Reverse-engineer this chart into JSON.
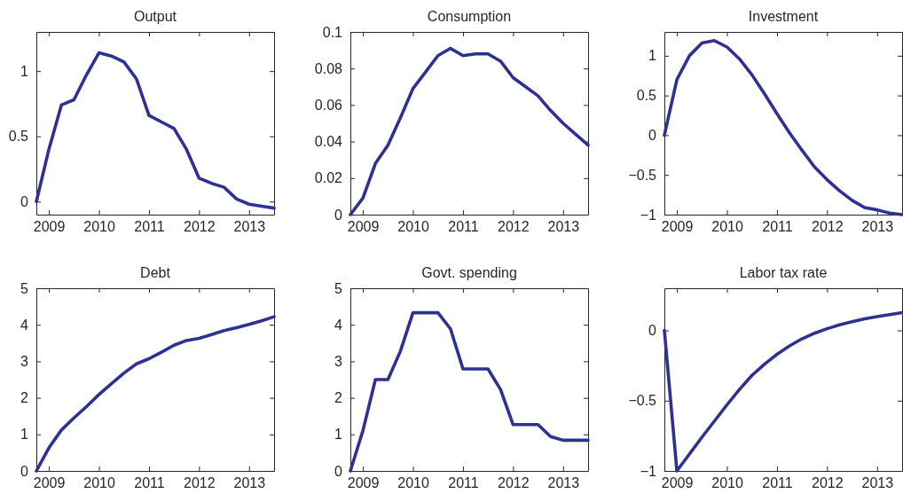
{
  "chart_data": [
    {
      "type": "line",
      "title": "Output",
      "x": [
        2008.75,
        2009,
        2009.25,
        2009.5,
        2009.75,
        2010,
        2010.25,
        2010.5,
        2010.75,
        2011,
        2011.25,
        2011.5,
        2011.75,
        2012,
        2012.25,
        2012.5,
        2012.75,
        2013,
        2013.25,
        2013.5
      ],
      "values": [
        0,
        0.4,
        0.74,
        0.78,
        0.97,
        1.14,
        1.115,
        1.07,
        0.94,
        0.66,
        0.61,
        0.56,
        0.4,
        0.18,
        0.14,
        0.11,
        0.02,
        -0.02,
        -0.035,
        -0.05
      ],
      "color": "#2e3192",
      "xlim": [
        2008.75,
        2013.5
      ],
      "ylim": [
        -0.1,
        1.3
      ],
      "xticks": [
        2009,
        2010,
        2011,
        2012,
        2013
      ],
      "yticks": [
        0,
        0.5,
        1
      ]
    },
    {
      "type": "line",
      "title": "Consumption",
      "x": [
        2008.75,
        2009,
        2009.25,
        2009.5,
        2009.75,
        2010,
        2010.25,
        2010.5,
        2010.75,
        2011,
        2011.25,
        2011.5,
        2011.75,
        2012,
        2012.25,
        2012.5,
        2012.75,
        2013,
        2013.25,
        2013.5
      ],
      "values": [
        0,
        0.009,
        0.028,
        0.038,
        0.053,
        0.069,
        0.078,
        0.087,
        0.091,
        0.087,
        0.088,
        0.088,
        0.084,
        0.075,
        0.07,
        0.065,
        0.057,
        0.05,
        0.044,
        0.038
      ],
      "color": "#2e3192",
      "xlim": [
        2008.75,
        2013.5
      ],
      "ylim": [
        0,
        0.1
      ],
      "xticks": [
        2009,
        2010,
        2011,
        2012,
        2013
      ],
      "yticks": [
        0,
        0.02,
        0.04,
        0.06,
        0.08,
        0.1
      ]
    },
    {
      "type": "line",
      "title": "Investment",
      "x": [
        2008.75,
        2009,
        2009.25,
        2009.5,
        2009.75,
        2010,
        2010.25,
        2010.5,
        2010.75,
        2011,
        2011.25,
        2011.5,
        2011.75,
        2012,
        2012.25,
        2012.5,
        2012.75,
        2013,
        2013.25,
        2013.5
      ],
      "values": [
        0,
        0.7,
        1,
        1.16,
        1.19,
        1.11,
        0.96,
        0.76,
        0.52,
        0.27,
        0.03,
        -0.19,
        -0.4,
        -0.56,
        -0.7,
        -0.82,
        -0.91,
        -0.94,
        -0.98,
        -1
      ],
      "color": "#2e3192",
      "xlim": [
        2008.75,
        2013.5
      ],
      "ylim": [
        -1,
        1.3
      ],
      "xticks": [
        2009,
        2010,
        2011,
        2012,
        2013
      ],
      "yticks": [
        -1,
        -0.5,
        0,
        0.5,
        1
      ]
    },
    {
      "type": "line",
      "title": "Debt",
      "x": [
        2008.75,
        2009,
        2009.25,
        2009.5,
        2009.75,
        2010,
        2010.25,
        2010.5,
        2010.75,
        2011,
        2011.25,
        2011.5,
        2011.75,
        2012,
        2012.25,
        2012.5,
        2012.75,
        2013,
        2013.25,
        2013.5
      ],
      "values": [
        0,
        0.63,
        1.12,
        1.45,
        1.76,
        2.09,
        2.39,
        2.68,
        2.93,
        3.07,
        3.25,
        3.44,
        3.57,
        3.63,
        3.73,
        3.84,
        3.92,
        4.01,
        4.11,
        4.22
      ],
      "color": "#2e3192",
      "xlim": [
        2008.75,
        2013.5
      ],
      "ylim": [
        0,
        5
      ],
      "xticks": [
        2009,
        2010,
        2011,
        2012,
        2013
      ],
      "yticks": [
        0,
        1,
        2,
        3,
        4,
        5
      ]
    },
    {
      "type": "line",
      "title": "Govt. spending",
      "x": [
        2008.75,
        2009,
        2009.25,
        2009.5,
        2009.75,
        2010,
        2010.25,
        2010.5,
        2010.75,
        2011,
        2011.25,
        2011.5,
        2011.75,
        2012,
        2012.25,
        2012.5,
        2012.75,
        2013,
        2013.25,
        2013.5
      ],
      "values": [
        0,
        1.1,
        2.5,
        2.5,
        3.28,
        4.33,
        4.33,
        4.33,
        3.89,
        2.79,
        2.79,
        2.79,
        2.23,
        1.27,
        1.27,
        1.27,
        0.94,
        0.84,
        0.84,
        0.84
      ],
      "color": "#2e3192",
      "xlim": [
        2008.75,
        2013.5
      ],
      "ylim": [
        0,
        5
      ],
      "xticks": [
        2009,
        2010,
        2011,
        2012,
        2013
      ],
      "yticks": [
        0,
        1,
        2,
        3,
        4,
        5
      ]
    },
    {
      "type": "line",
      "title": "Labor tax rate",
      "x": [
        2008.75,
        2009,
        2009.25,
        2009.5,
        2009.75,
        2010,
        2010.25,
        2010.5,
        2010.75,
        2011,
        2011.25,
        2011.5,
        2011.75,
        2012,
        2012.25,
        2012.5,
        2012.75,
        2013,
        2013.25,
        2013.5
      ],
      "values": [
        0,
        -1,
        -0.88,
        -0.76,
        -0.645,
        -0.53,
        -0.42,
        -0.32,
        -0.24,
        -0.17,
        -0.11,
        -0.06,
        -0.02,
        0.012,
        0.04,
        0.062,
        0.082,
        0.098,
        0.112,
        0.126
      ],
      "color": "#2e3192",
      "xlim": [
        2008.75,
        2013.5
      ],
      "ylim": [
        -1,
        0.3
      ],
      "xticks": [
        2009,
        2010,
        2011,
        2012,
        2013
      ],
      "yticks": [
        -1,
        -0.5,
        0
      ]
    }
  ]
}
